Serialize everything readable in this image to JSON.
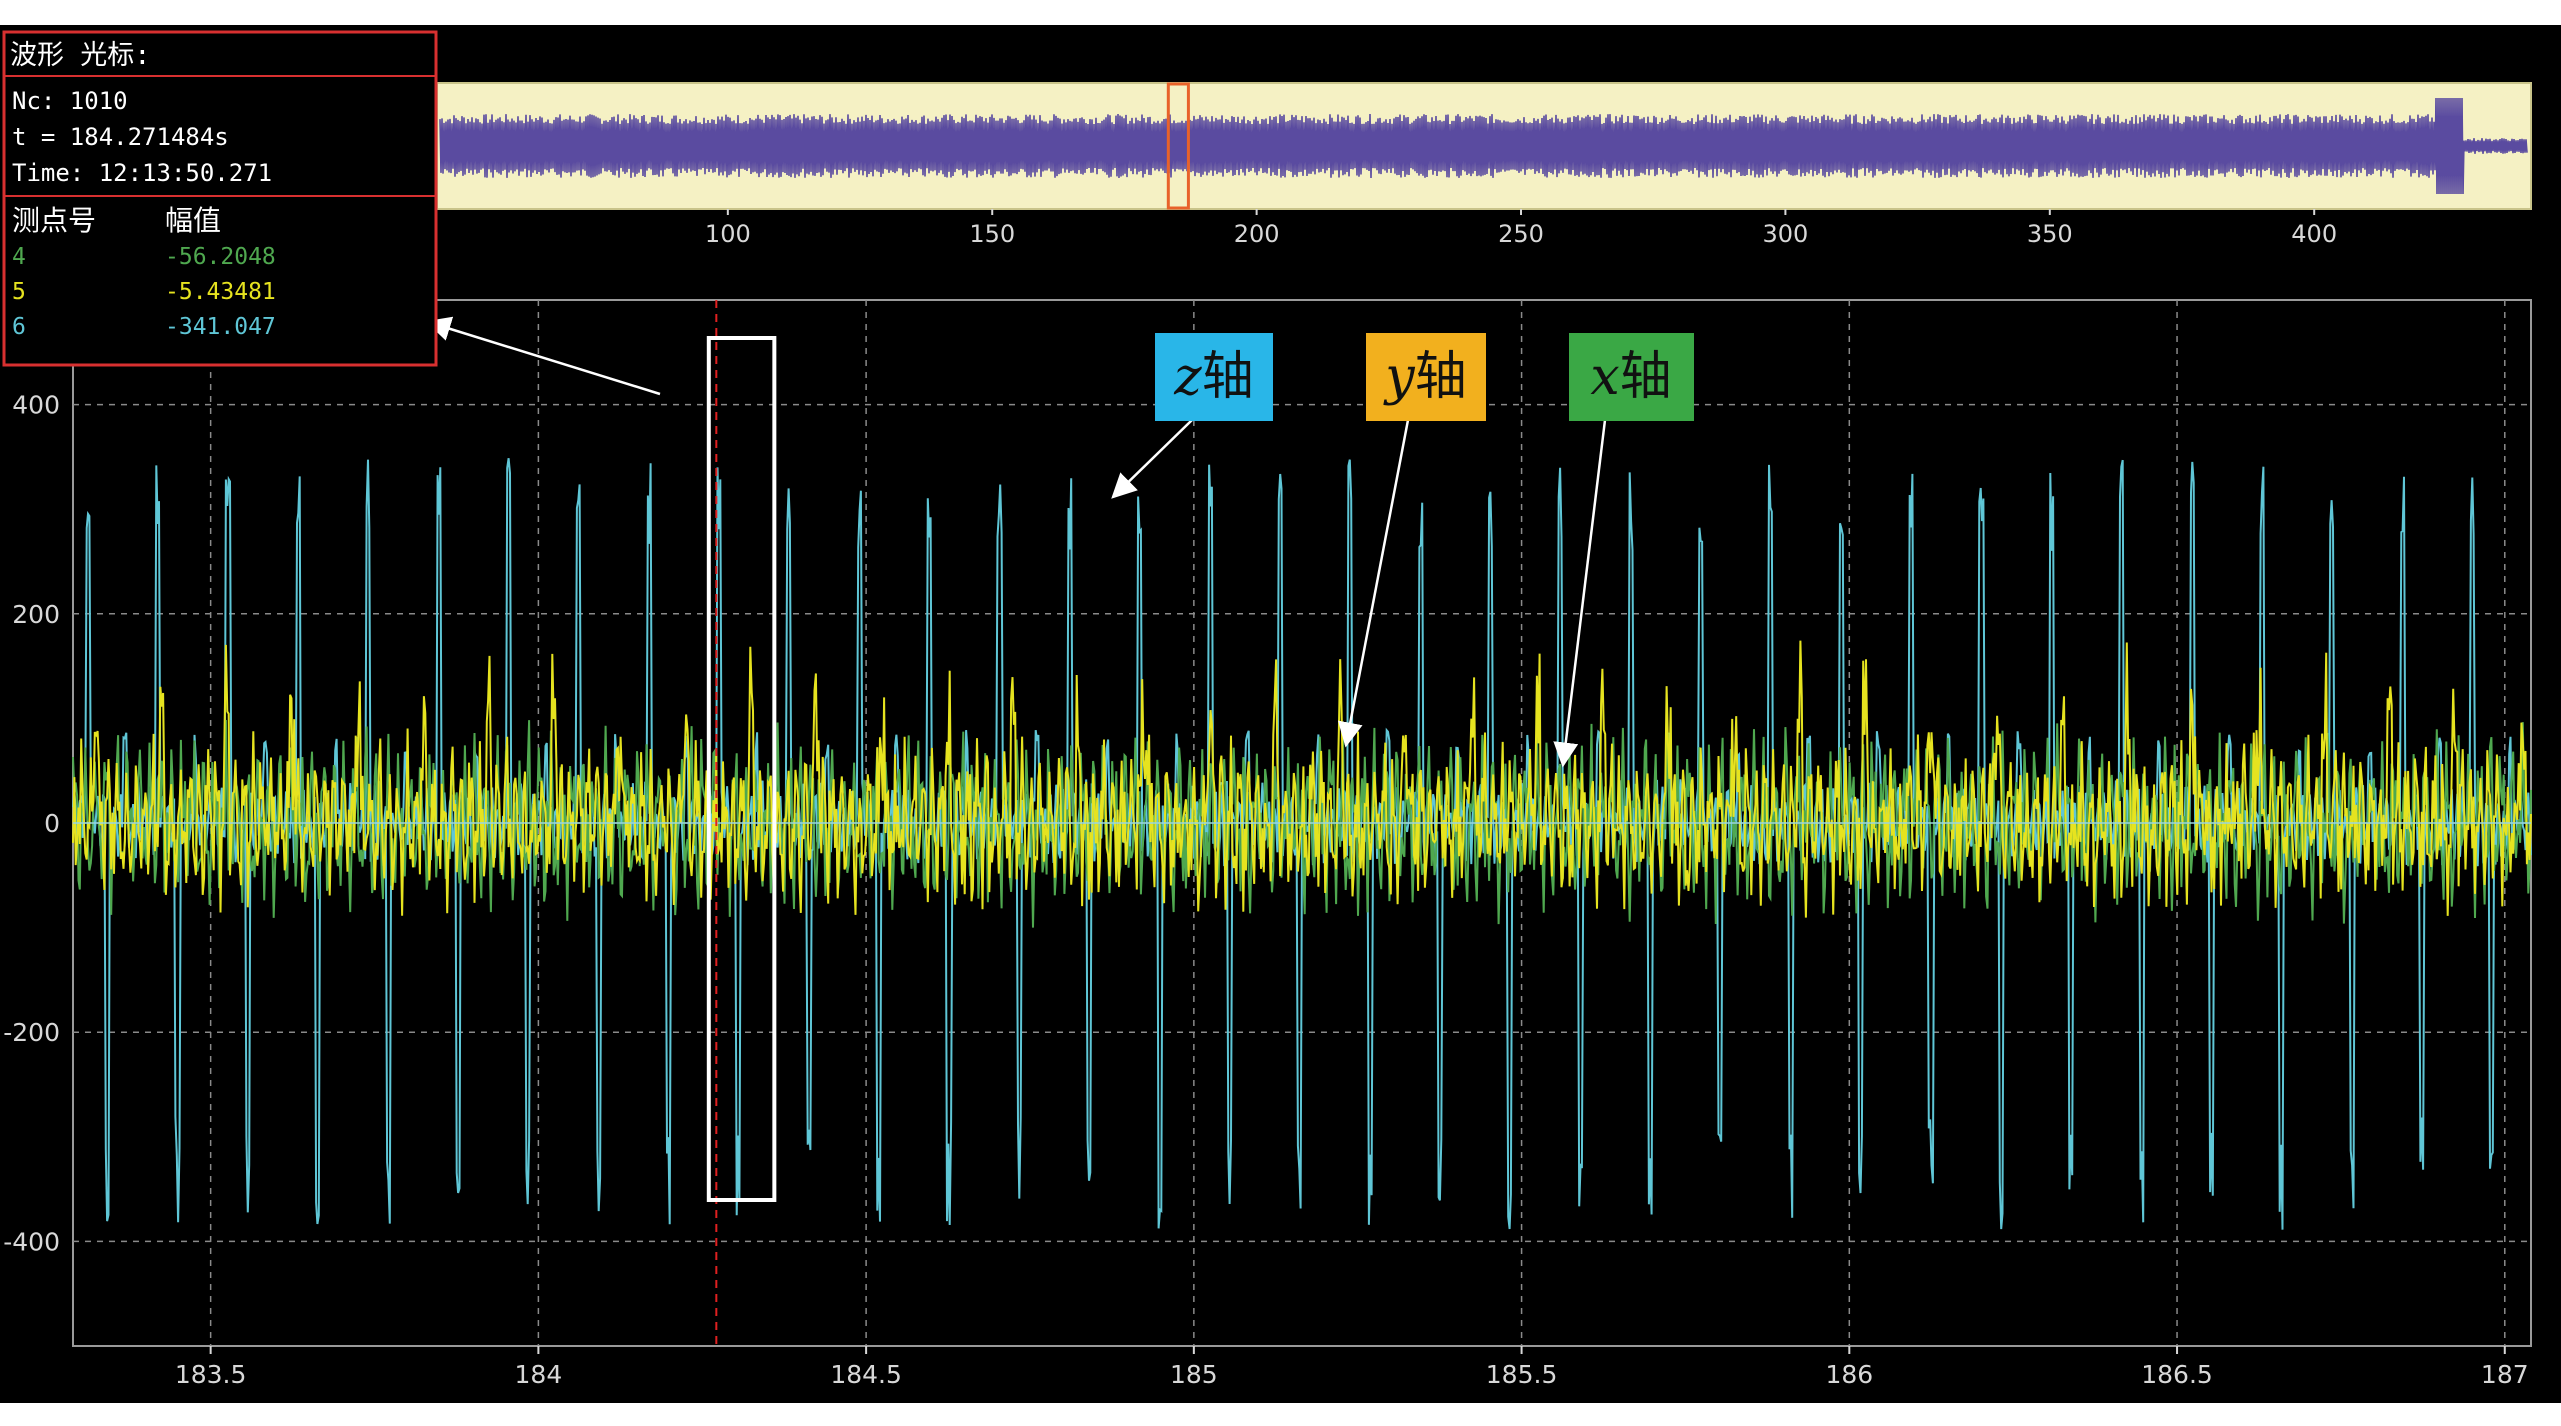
{
  "cursor_panel": {
    "title": "波形 光标:",
    "nc_label": "Nc: 1010",
    "t_label": "t = 184.271484s",
    "time_label": "Time: 12:13:50.271",
    "col_point": "测点号",
    "col_amp": "幅值",
    "rows": [
      {
        "id": "4",
        "value": "-56.2048"
      },
      {
        "id": "5",
        "value": "-5.43481"
      },
      {
        "id": "6",
        "value": "-341.047"
      }
    ]
  },
  "colors": {
    "background": "#000000",
    "overview_bg": "#f5f1c4",
    "overview_wave": "#5a4ba0",
    "overview_window": "#e8622a",
    "grid": "#8a8a8a",
    "cursor_line": "#e02020",
    "z_axis": "#5fc6d6",
    "y_axis": "#e6e31f",
    "x_axis": "#4fa84f",
    "z_badge": "#29b6e8",
    "y_badge": "#f2b01e",
    "x_badge": "#3aa845",
    "panel_border": "#d83030"
  },
  "annotations": [
    {
      "prefix": "z",
      "suffix": "轴"
    },
    {
      "prefix": "y",
      "suffix": "轴"
    },
    {
      "prefix": "x",
      "suffix": "轴"
    }
  ],
  "chart_data": [
    {
      "type": "line",
      "panel": "overview",
      "x_ticks": [
        "100",
        "150",
        "200",
        "250",
        "300",
        "350",
        "400"
      ],
      "xlim": [
        45,
        441
      ],
      "selected_window": [
        183.3,
        187.1
      ],
      "series": [
        {
          "values_description_hidden": true
        }
      ]
    },
    {
      "type": "line",
      "panel": "detail",
      "x_ticks": [
        "183.5",
        "184",
        "184.5",
        "185",
        "185.5",
        "186",
        "186.5",
        "187"
      ],
      "y_ticks": [
        "400",
        "200",
        "0",
        "-200",
        "-400"
      ],
      "xlim": [
        183.29,
        187.04
      ],
      "ylim": [
        -500,
        500
      ],
      "grid": true,
      "cursor_x": 184.271484,
      "highlight_x": [
        184.26,
        184.36
      ],
      "series": [
        {
          "name": "z轴",
          "peak_period": 0.107,
          "amplitude": [
            -400,
            350
          ]
        },
        {
          "name": "y轴",
          "amplitude": [
            -80,
            140
          ]
        },
        {
          "name": "x轴",
          "amplitude": [
            -90,
            90
          ]
        }
      ]
    }
  ]
}
